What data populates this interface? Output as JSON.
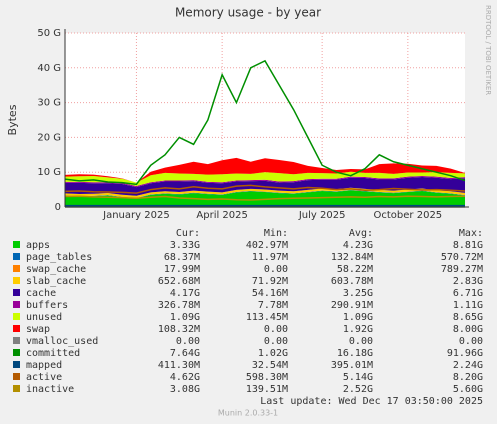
{
  "chart_data": {
    "type": "area",
    "title": "Memory usage - by year",
    "y_label": "Bytes",
    "side_text": "RRDTOOL / TOBI OETIKER",
    "grid": true,
    "categories": [
      null,
      null,
      null,
      null,
      null,
      "January 2025",
      null,
      null,
      null,
      null,
      null,
      "April 2025",
      null,
      null,
      null,
      null,
      null,
      null,
      "July 2025",
      null,
      null,
      null,
      null,
      null,
      "October 2025",
      null,
      null,
      null,
      null
    ],
    "ylim": [
      0,
      50
    ],
    "yticks": [
      0,
      {
        "value": 10,
        "label": "10 G"
      },
      {
        "value": 20,
        "label": "20 G"
      },
      {
        "value": 30,
        "label": "30 G"
      },
      {
        "value": 40,
        "label": "40 G"
      },
      {
        "value": 50,
        "label": "50 G"
      }
    ],
    "series": [
      {
        "name": "apps",
        "color": "#00cc00",
        "style": "area",
        "values": [
          3.2,
          3.0,
          3.1,
          3.3,
          2.8,
          2.5,
          3.5,
          3.8,
          3.6,
          4.0,
          3.7,
          3.5,
          4.2,
          4.5,
          4.3,
          4.0,
          3.8,
          4.2,
          4.6,
          4.4,
          4.8,
          4.5,
          4.2,
          4.0,
          4.3,
          4.6,
          4.1,
          3.8,
          3.3
        ]
      },
      {
        "name": "page_tables",
        "color": "#0066b3",
        "style": "area",
        "values": [
          0.1,
          0.1,
          0.1,
          0.1,
          0.1,
          0.1,
          0.1,
          0.1,
          0.1,
          0.1,
          0.1,
          0.1,
          0.1,
          0.1,
          0.1,
          0.1,
          0.1,
          0.1,
          0.1,
          0.1,
          0.1,
          0.1,
          0.1,
          0.1,
          0.1,
          0.1,
          0.1,
          0.1,
          0.1
        ]
      },
      {
        "name": "swap_cache",
        "color": "#ff8000",
        "style": "area",
        "values": [
          0.02,
          0.02,
          0.02,
          0.02,
          0.02,
          0.02,
          0.02,
          0.02,
          0.02,
          0.02,
          0.02,
          0.02,
          0.02,
          0.02,
          0.02,
          0.02,
          0.02,
          0.02,
          0.02,
          0.02,
          0.02,
          0.02,
          0.02,
          0.02,
          0.02,
          0.02,
          0.02,
          0.02,
          0.02
        ]
      },
      {
        "name": "slab_cache",
        "color": "#ffcc00",
        "style": "area",
        "values": [
          0.6,
          0.6,
          0.6,
          0.6,
          0.6,
          0.6,
          0.6,
          0.6,
          0.6,
          0.6,
          0.6,
          0.6,
          0.6,
          0.6,
          0.6,
          0.6,
          0.6,
          0.6,
          0.6,
          0.6,
          0.6,
          0.6,
          0.6,
          0.6,
          0.6,
          0.6,
          0.6,
          0.6,
          0.65
        ]
      },
      {
        "name": "cache",
        "color": "#330099",
        "style": "area",
        "values": [
          3.0,
          3.2,
          3.0,
          2.8,
          3.1,
          2.5,
          2.6,
          2.8,
          3.0,
          2.7,
          2.5,
          2.6,
          2.4,
          2.2,
          2.5,
          2.3,
          2.6,
          2.8,
          2.5,
          2.7,
          2.9,
          3.1,
          3.0,
          3.2,
          3.4,
          3.3,
          3.6,
          3.5,
          4.2
        ]
      },
      {
        "name": "buffers",
        "color": "#990099",
        "style": "area",
        "values": [
          0.3,
          0.3,
          0.3,
          0.3,
          0.3,
          0.3,
          0.3,
          0.3,
          0.3,
          0.3,
          0.3,
          0.3,
          0.3,
          0.3,
          0.3,
          0.3,
          0.3,
          0.3,
          0.3,
          0.3,
          0.3,
          0.3,
          0.3,
          0.3,
          0.3,
          0.3,
          0.3,
          0.3,
          0.3
        ]
      },
      {
        "name": "unused",
        "color": "#ccff00",
        "style": "area",
        "values": [
          1.5,
          1.6,
          1.8,
          1.4,
          1.2,
          1.0,
          2.0,
          2.2,
          2.0,
          1.8,
          2.1,
          2.3,
          2.0,
          1.8,
          2.2,
          2.4,
          2.0,
          1.8,
          1.6,
          1.5,
          1.4,
          1.2,
          1.6,
          1.3,
          1.2,
          1.0,
          1.3,
          1.5,
          1.1
        ]
      },
      {
        "name": "swap",
        "color": "#ff0000",
        "style": "area",
        "values": [
          0.5,
          0.6,
          0.4,
          0.3,
          0.1,
          0,
          1.0,
          1.5,
          2.5,
          3.5,
          3.0,
          4.0,
          4.5,
          3.5,
          4.0,
          3.8,
          3.5,
          2.0,
          1.5,
          1.0,
          0.8,
          1.0,
          2.5,
          3.0,
          2.5,
          2.0,
          1.8,
          1.2,
          0.1
        ]
      },
      {
        "name": "vmalloc_used",
        "color": "#808080",
        "style": "line",
        "values": [
          0,
          0,
          0,
          0,
          0,
          0,
          0,
          0,
          0,
          0,
          0,
          0,
          0,
          0,
          0,
          0,
          0,
          0,
          0,
          0,
          0,
          0,
          0,
          0,
          0,
          0,
          0,
          0,
          0
        ]
      },
      {
        "name": "committed",
        "color": "#008f00",
        "style": "line",
        "values": [
          8,
          7.5,
          7.8,
          7.2,
          7.0,
          6.5,
          12,
          15,
          20,
          18,
          25,
          38,
          30,
          40,
          42,
          35,
          28,
          20,
          12,
          10,
          9,
          11,
          15,
          13,
          12,
          11,
          10,
          9,
          7.6
        ]
      },
      {
        "name": "mapped",
        "color": "#00487d",
        "style": "line",
        "values": [
          0.4,
          0.4,
          0.4,
          0.4,
          0.4,
          0.4,
          0.4,
          0.4,
          0.4,
          0.4,
          0.4,
          0.4,
          0.4,
          0.4,
          0.4,
          0.4,
          0.4,
          0.4,
          0.4,
          0.4,
          0.4,
          0.4,
          0.4,
          0.4,
          0.4,
          0.4,
          0.4,
          0.4,
          0.41
        ]
      },
      {
        "name": "active",
        "color": "#b35a00",
        "style": "line",
        "values": [
          4.5,
          4.6,
          4.4,
          4.3,
          4.2,
          4.0,
          5.0,
          5.5,
          5.2,
          5.8,
          5.4,
          5.2,
          6.0,
          6.2,
          5.8,
          5.5,
          5.2,
          5.6,
          5.4,
          5.0,
          5.2,
          4.8,
          5.0,
          5.3,
          5.1,
          4.9,
          5.0,
          4.8,
          4.6
        ]
      },
      {
        "name": "inactive",
        "color": "#b38f00",
        "style": "line",
        "values": [
          3.0,
          3.1,
          2.9,
          2.8,
          2.7,
          2.5,
          2.8,
          3.0,
          2.6,
          2.4,
          2.2,
          2.3,
          2.1,
          2.0,
          2.2,
          2.4,
          2.5,
          2.6,
          2.7,
          2.8,
          2.9,
          2.8,
          3.0,
          2.9,
          3.1,
          3.0,
          2.9,
          3.0,
          3.08
        ]
      }
    ],
    "legend_table": {
      "headers": [
        "Cur:",
        "Min:",
        "Avg:",
        "Max:"
      ],
      "rows": [
        [
          "3.33G",
          "402.97M",
          "4.23G",
          "8.81G"
        ],
        [
          "68.37M",
          "11.97M",
          "132.84M",
          "570.72M"
        ],
        [
          "17.99M",
          "0.00",
          "58.22M",
          "789.27M"
        ],
        [
          "652.68M",
          "71.92M",
          "603.78M",
          "2.83G"
        ],
        [
          "4.17G",
          "54.16M",
          "3.25G",
          "6.71G"
        ],
        [
          "326.78M",
          "7.78M",
          "290.91M",
          "1.11G"
        ],
        [
          "1.09G",
          "113.45M",
          "1.09G",
          "8.65G"
        ],
        [
          "108.32M",
          "0.00",
          "1.92G",
          "8.00G"
        ],
        [
          "0.00",
          "0.00",
          "0.00",
          "0.00"
        ],
        [
          "7.64G",
          "1.02G",
          "16.18G",
          "91.96G"
        ],
        [
          "411.30M",
          "32.54M",
          "395.01M",
          "2.24G"
        ],
        [
          "4.62G",
          "598.30M",
          "5.14G",
          "8.20G"
        ],
        [
          "3.08G",
          "139.51M",
          "2.52G",
          "5.60G"
        ]
      ]
    },
    "last_update": "Last update: Wed Dec 17 03:50:00 2025",
    "footer": "Munin 2.0.33-1"
  }
}
